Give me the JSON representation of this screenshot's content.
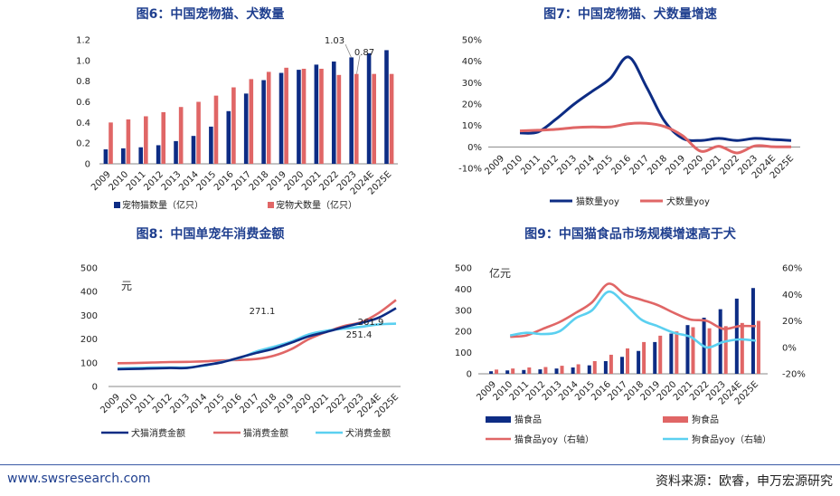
{
  "colors": {
    "navy": "#0d2c84",
    "red": "#e06666",
    "light": "#5bd0f0",
    "title": "#1f3f8f"
  },
  "chart_data": [
    {
      "id": "fig6",
      "type": "bar",
      "title": "图6：中国宠物猫、犬数量",
      "categories": [
        "2009",
        "2010",
        "2011",
        "2012",
        "2013",
        "2014",
        "2015",
        "2016",
        "2017",
        "2018",
        "2019",
        "2020",
        "2021",
        "2022",
        "2023",
        "2024E",
        "2025E"
      ],
      "series": [
        {
          "name": "宠物猫数量（亿只）",
          "values": [
            0.14,
            0.15,
            0.16,
            0.18,
            0.22,
            0.27,
            0.36,
            0.51,
            0.68,
            0.81,
            0.88,
            0.91,
            0.96,
            0.99,
            1.03,
            1.07,
            1.1
          ]
        },
        {
          "name": "宠物犬数量（亿只）",
          "values": [
            0.4,
            0.43,
            0.46,
            0.5,
            0.55,
            0.6,
            0.66,
            0.74,
            0.82,
            0.89,
            0.93,
            0.92,
            0.92,
            0.86,
            0.87,
            0.87,
            0.87
          ]
        }
      ],
      "ylim": [
        0,
        1.2
      ],
      "yticks": [
        "0",
        "0.2",
        "0.4",
        "0.6",
        "0.8",
        "1.0",
        "1.2"
      ],
      "annotations": [
        {
          "text": "1.03",
          "series": 0,
          "index": 14
        },
        {
          "text": "0.87",
          "series": 1,
          "index": 14
        }
      ]
    },
    {
      "id": "fig7",
      "type": "line",
      "title": "图7：中国宠物猫、犬数量增速",
      "categories": [
        "2009",
        "2010",
        "2011",
        "2012",
        "2013",
        "2014",
        "2015",
        "2016",
        "2017",
        "2018",
        "2019",
        "2020",
        "2021",
        "2022",
        "2023",
        "2024E",
        "2025E"
      ],
      "series": [
        {
          "name": "猫数量yoy",
          "values": [
            null,
            6.5,
            7,
            13,
            20,
            26,
            32,
            42,
            28,
            12,
            4,
            3,
            4,
            3,
            4,
            3.5,
            3
          ]
        },
        {
          "name": "犬数量yoy",
          "values": [
            null,
            7.5,
            7.8,
            8.2,
            9,
            9.3,
            9.3,
            10.8,
            11,
            9.5,
            5.2,
            -2,
            0.3,
            -2.8,
            0.5,
            0.1,
            0
          ]
        }
      ],
      "ylim": [
        -10,
        50
      ],
      "yticks": [
        "-10%",
        "0%",
        "10%",
        "20%",
        "30%",
        "40%",
        "50%"
      ]
    },
    {
      "id": "fig8",
      "type": "line",
      "title": "图8：中国单宠年消费金额",
      "unit": "元",
      "categories": [
        "2009",
        "2010",
        "2011",
        "2012",
        "2013",
        "2014",
        "2015",
        "2016",
        "2017",
        "2018",
        "2019",
        "2020",
        "2021",
        "2022",
        "2023",
        "2024E",
        "2025E"
      ],
      "series": [
        {
          "name": "犬猫消费金额",
          "values": [
            73,
            74,
            76,
            78,
            78,
            90,
            102,
            122,
            142,
            160,
            185,
            212,
            230,
            250,
            268,
            290,
            330
          ]
        },
        {
          "name": "猫消费金额",
          "values": [
            98,
            99,
            101,
            103,
            104,
            106,
            110,
            112,
            116,
            130,
            158,
            200,
            230,
            255,
            271.1,
            310,
            365
          ]
        },
        {
          "name": "犬消费金额",
          "values": [
            76,
            78,
            80,
            80,
            80,
            88,
            104,
            120,
            148,
            168,
            190,
            220,
            235,
            244,
            251.4,
            262,
            265
          ]
        }
      ],
      "ylim": [
        0,
        500
      ],
      "yticks": [
        "0",
        "100",
        "200",
        "300",
        "400",
        "500"
      ],
      "annotations": [
        {
          "text": "271.1",
          "series": 1,
          "index": 14
        },
        {
          "text": "261.9",
          "series": 2,
          "index": 15
        },
        {
          "text": "251.4",
          "series": 2,
          "index": 14
        }
      ]
    },
    {
      "id": "fig9",
      "type": "bar",
      "title": "图9：中国猫食品市场规模增速高于犬",
      "unit": "亿元",
      "categories": [
        "2009",
        "2010",
        "2011",
        "2012",
        "2013",
        "2014",
        "2015",
        "2016",
        "2017",
        "2018",
        "2019",
        "2020",
        "2021",
        "2022",
        "2023",
        "2024E",
        "2025E"
      ],
      "series": [
        {
          "name": "猫食品",
          "axis": "left",
          "values": [
            12,
            16,
            18,
            21,
            25,
            30,
            40,
            60,
            80,
            108,
            150,
            190,
            230,
            265,
            305,
            355,
            405
          ]
        },
        {
          "name": "狗食品",
          "axis": "left",
          "values": [
            20,
            25,
            30,
            32,
            38,
            45,
            60,
            90,
            120,
            150,
            180,
            200,
            220,
            215,
            225,
            240,
            250
          ]
        },
        {
          "name": "猫食品yoy（右轴）",
          "axis": "right",
          "values": [
            null,
            8,
            9,
            14,
            19,
            26,
            34,
            48,
            40,
            36,
            32,
            26,
            21,
            20,
            14,
            16,
            16
          ]
        },
        {
          "name": "狗食品yoy（右轴）",
          "axis": "right",
          "values": [
            null,
            9,
            11,
            10,
            12,
            22,
            28,
            42,
            33,
            21,
            16,
            11,
            8,
            0,
            4,
            6,
            5
          ]
        }
      ],
      "ylim": [
        0,
        500
      ],
      "yticks": [
        "0",
        "100",
        "200",
        "300",
        "400",
        "500"
      ],
      "y2lim": [
        -20,
        60
      ],
      "y2ticks": [
        "-20%",
        "0%",
        "20%",
        "40%",
        "60%"
      ]
    }
  ],
  "footer": {
    "website": "www.swsresearch.com",
    "source": "资料来源：欧睿，申万宏源研究"
  }
}
